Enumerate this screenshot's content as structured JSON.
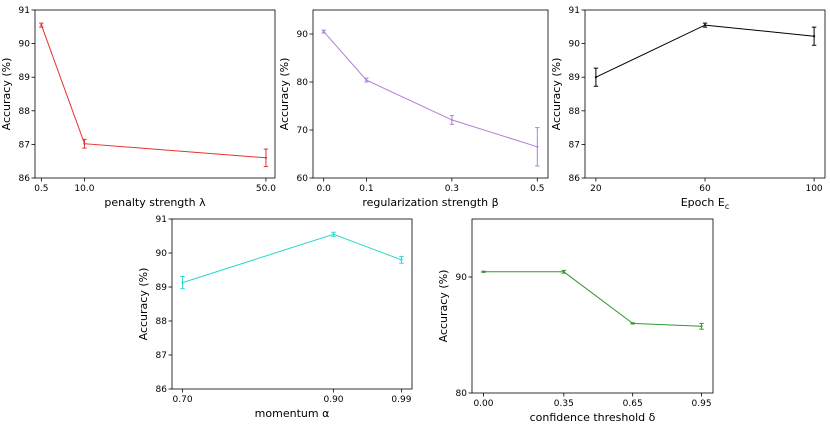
{
  "chart_data": [
    {
      "type": "line",
      "xlabel": "penalty strength λ",
      "ylabel": "Accuracy (%)",
      "color": "#e8312f",
      "x": [
        0.5,
        10.0,
        50.0
      ],
      "x_tick_labels": [
        "0.5",
        "10.0",
        "50.0"
      ],
      "values": [
        90.55,
        87.02,
        86.6
      ],
      "errors": [
        0.06,
        0.13,
        0.26
      ],
      "ylim": [
        86,
        91
      ],
      "y_ticks": [
        86,
        87,
        88,
        89,
        90,
        91
      ],
      "xlim": [
        -0.9,
        52.0
      ]
    },
    {
      "type": "line",
      "xlabel": "regularization strength β",
      "ylabel": "Accuracy (%)",
      "color": "#b07fd8",
      "x": [
        0.0,
        0.1,
        0.3,
        0.5
      ],
      "x_tick_labels": [
        "0.0",
        "0.1",
        "0.3",
        "0.5"
      ],
      "values": [
        90.5,
        80.4,
        72.1,
        66.5
      ],
      "errors": [
        0.3,
        0.4,
        0.9,
        4.0
      ],
      "ylim": [
        60,
        95
      ],
      "y_ticks": [
        60,
        70,
        80,
        90
      ],
      "xlim": [
        -0.025,
        0.525
      ]
    },
    {
      "type": "line",
      "xlabel": "Epoch E",
      "xlabel_sub": "c",
      "ylabel": "Accuracy (%)",
      "color": "#000000",
      "x": [
        20,
        60,
        100
      ],
      "x_tick_labels": [
        "20",
        "60",
        "100"
      ],
      "values": [
        89.0,
        90.55,
        90.22
      ],
      "errors": [
        0.27,
        0.06,
        0.27
      ],
      "ylim": [
        86,
        91
      ],
      "y_ticks": [
        86,
        87,
        88,
        89,
        90,
        91
      ],
      "xlim": [
        16,
        104
      ]
    },
    {
      "type": "line",
      "xlabel": "momentum α",
      "ylabel": "Accuracy (%)",
      "color": "#2ad8cc",
      "x": [
        0.7,
        0.9,
        0.99
      ],
      "x_tick_labels": [
        "0.70",
        "0.90",
        "0.99"
      ],
      "values": [
        89.13,
        90.55,
        89.8
      ],
      "errors": [
        0.18,
        0.06,
        0.1
      ],
      "ylim": [
        86,
        91
      ],
      "y_ticks": [
        86,
        87,
        88,
        89,
        90,
        91
      ],
      "xlim": [
        0.686,
        1.004
      ]
    },
    {
      "type": "line",
      "xlabel": "confidence threshold δ",
      "ylabel": "Accuracy (%)",
      "color": "#2e9a2e",
      "x": [
        0.0,
        0.35,
        0.65,
        0.95
      ],
      "x_tick_labels": [
        "0.00",
        "0.35",
        "0.65",
        "0.95"
      ],
      "values": [
        90.45,
        90.45,
        86.0,
        85.75
      ],
      "errors": [
        0.05,
        0.12,
        0.05,
        0.25
      ],
      "ylim": [
        80,
        95
      ],
      "y_ticks": [
        80,
        90
      ],
      "xlim": [
        -0.05,
        1.0
      ]
    }
  ]
}
